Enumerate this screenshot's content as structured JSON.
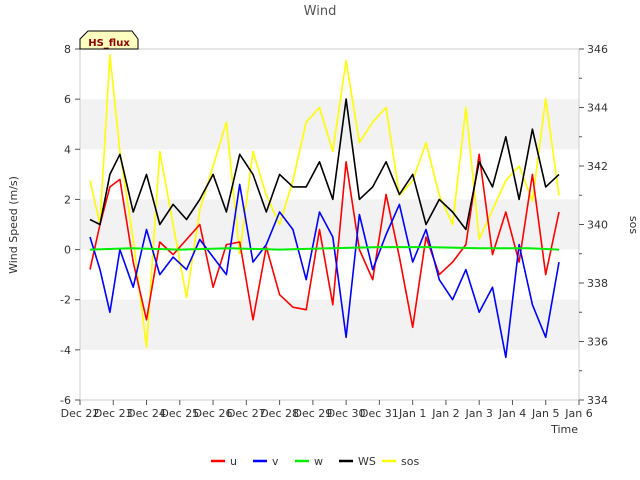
{
  "chart_data": {
    "type": "line",
    "title": "Wind",
    "badge": "HS_flux",
    "xlabel": "Time",
    "ylabel": "Wind Speed (m/s)",
    "y2label": "sos",
    "x_ticks": [
      "Dec 22",
      "Dec 23",
      "Dec 24",
      "Dec 25",
      "Dec 26",
      "Dec 27",
      "Dec 28",
      "Dec 29",
      "Dec 30",
      "Dec 31",
      "Jan 1",
      "Jan 2",
      "Jan 3",
      "Jan 4",
      "Jan 5",
      "Jan 6"
    ],
    "xlim": [
      0,
      15
    ],
    "ylim": [
      -6,
      8
    ],
    "y_ticks": [
      -6,
      -4,
      -2,
      0,
      2,
      4,
      6,
      8
    ],
    "y2lim": [
      334,
      346
    ],
    "y2_ticks": [
      334,
      336,
      338,
      340,
      342,
      344,
      346
    ],
    "grid": "horizontal bands",
    "legend_position": "bottom-center",
    "colors": {
      "u": "#ff0000",
      "v": "#0000ff",
      "w": "#00ee00",
      "WS": "#000000",
      "sos": "#ffff00",
      "band": "#f2f2f2"
    },
    "series": [
      {
        "name": "u",
        "axis": "left",
        "x": [
          0.3,
          0.6,
          0.9,
          1.2,
          1.6,
          2.0,
          2.4,
          2.8,
          3.2,
          3.6,
          4.0,
          4.4,
          4.8,
          5.2,
          5.6,
          6.0,
          6.4,
          6.8,
          7.2,
          7.6,
          8.0,
          8.4,
          8.8,
          9.2,
          9.6,
          10.0,
          10.4,
          10.8,
          11.2,
          11.6,
          12.0,
          12.4,
          12.8,
          13.2,
          13.6,
          14.0,
          14.4
        ],
        "values": [
          -0.8,
          1.0,
          2.5,
          2.8,
          -0.5,
          -2.8,
          0.3,
          -0.2,
          0.4,
          1.0,
          -1.5,
          0.2,
          0.3,
          -2.8,
          0.1,
          -1.8,
          -2.3,
          -2.4,
          0.8,
          -2.2,
          3.5,
          0.0,
          -1.2,
          2.2,
          -0.3,
          -3.1,
          0.5,
          -1.0,
          -0.5,
          0.2,
          3.8,
          -0.2,
          1.5,
          -0.5,
          3.0,
          -1.0,
          1.5
        ]
      },
      {
        "name": "v",
        "axis": "left",
        "x": [
          0.3,
          0.6,
          0.9,
          1.2,
          1.6,
          2.0,
          2.4,
          2.8,
          3.2,
          3.6,
          4.0,
          4.4,
          4.8,
          5.2,
          5.6,
          6.0,
          6.4,
          6.8,
          7.2,
          7.6,
          8.0,
          8.4,
          8.8,
          9.2,
          9.6,
          10.0,
          10.4,
          10.8,
          11.2,
          11.6,
          12.0,
          12.4,
          12.8,
          13.2,
          13.6,
          14.0,
          14.4
        ],
        "values": [
          0.5,
          -0.8,
          -2.5,
          0.0,
          -1.5,
          0.8,
          -1.0,
          -0.3,
          -0.8,
          0.4,
          -0.3,
          -1.0,
          2.6,
          -0.5,
          0.2,
          1.5,
          0.8,
          -1.2,
          1.5,
          0.5,
          -3.5,
          1.4,
          -0.8,
          0.6,
          1.8,
          -0.5,
          0.8,
          -1.2,
          -2.0,
          -0.8,
          -2.5,
          -1.5,
          -4.3,
          0.2,
          -2.2,
          -3.5,
          -0.5
        ]
      },
      {
        "name": "w",
        "axis": "left",
        "x": [
          0.3,
          1.5,
          3.0,
          4.5,
          6.0,
          7.5,
          9.0,
          10.5,
          12.0,
          13.5,
          14.4
        ],
        "values": [
          0.0,
          0.05,
          0.0,
          0.05,
          0.0,
          0.05,
          0.1,
          0.1,
          0.05,
          0.05,
          0.0
        ]
      },
      {
        "name": "WS",
        "axis": "left",
        "x": [
          0.3,
          0.6,
          0.9,
          1.2,
          1.6,
          2.0,
          2.4,
          2.8,
          3.2,
          3.6,
          4.0,
          4.4,
          4.8,
          5.2,
          5.6,
          6.0,
          6.4,
          6.8,
          7.2,
          7.6,
          8.0,
          8.4,
          8.8,
          9.2,
          9.6,
          10.0,
          10.4,
          10.8,
          11.2,
          11.6,
          12.0,
          12.4,
          12.8,
          13.2,
          13.6,
          14.0,
          14.4
        ],
        "values": [
          1.2,
          1.0,
          3.0,
          3.8,
          1.5,
          3.0,
          1.0,
          1.8,
          1.2,
          2.0,
          3.0,
          1.5,
          3.8,
          3.0,
          1.5,
          3.0,
          2.5,
          2.5,
          3.5,
          2.0,
          6.0,
          2.0,
          2.5,
          3.5,
          2.2,
          3.0,
          1.0,
          2.0,
          1.5,
          0.8,
          3.5,
          2.5,
          4.5,
          2.0,
          4.8,
          2.5,
          3.0
        ]
      },
      {
        "name": "sos",
        "axis": "right",
        "x": [
          0.3,
          0.6,
          0.9,
          1.2,
          1.6,
          2.0,
          2.4,
          2.8,
          3.2,
          3.6,
          4.0,
          4.4,
          4.8,
          5.2,
          5.6,
          6.0,
          6.4,
          6.8,
          7.2,
          7.6,
          8.0,
          8.4,
          8.8,
          9.2,
          9.6,
          10.0,
          10.4,
          10.8,
          11.2,
          11.6,
          12.0,
          12.4,
          12.8,
          13.2,
          13.6,
          14.0,
          14.4
        ],
        "values": [
          341.5,
          340.0,
          345.8,
          342.5,
          339.5,
          335.8,
          342.5,
          340.0,
          337.5,
          340.5,
          342.0,
          343.5,
          339.0,
          342.5,
          341.0,
          340.0,
          341.5,
          343.5,
          344.0,
          342.5,
          345.6,
          342.8,
          343.5,
          344.0,
          341.0,
          341.5,
          342.8,
          341.0,
          340.0,
          344.0,
          339.5,
          340.5,
          341.5,
          342.0,
          340.8,
          344.3,
          341.0
        ]
      }
    ]
  }
}
